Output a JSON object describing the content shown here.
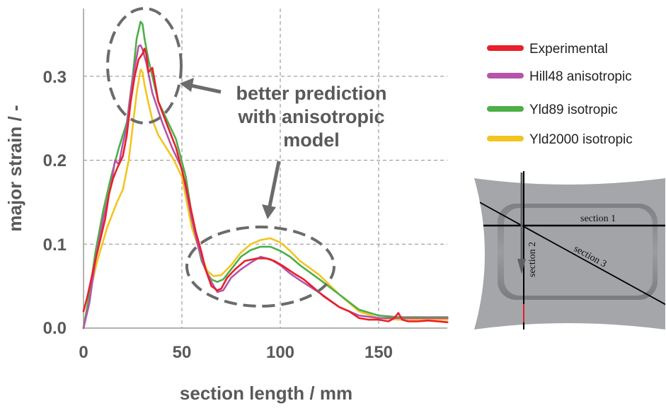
{
  "chart_data": {
    "type": "line",
    "title": "",
    "xlabel": "section length / mm",
    "ylabel": "major strain / -",
    "xlim": [
      0,
      185
    ],
    "ylim": [
      0,
      0.38
    ],
    "xticks": [
      "0",
      "50",
      "100",
      "150"
    ],
    "xtick_values": [
      0,
      50,
      100,
      150
    ],
    "yticks": [
      "0.0",
      "0.1",
      "0.2",
      "0.3"
    ],
    "ytick_values": [
      0.0,
      0.1,
      0.2,
      0.3
    ],
    "grid": true,
    "legend_position": "top-right outside",
    "series": [
      {
        "name": "Experimental",
        "color": "#e8202a",
        "x": [
          0,
          2,
          5,
          8,
          11,
          13,
          15,
          17,
          20,
          22,
          24,
          26,
          28,
          30,
          31,
          32,
          33,
          35,
          38,
          42,
          47,
          52,
          57,
          60,
          62,
          65,
          68,
          70,
          73,
          77,
          82,
          88,
          93,
          97,
          102,
          107,
          112,
          117,
          122,
          130,
          135,
          140,
          145,
          150,
          155,
          158,
          160,
          162,
          165,
          170,
          175,
          180,
          185
        ],
        "y": [
          0.02,
          0.038,
          0.07,
          0.1,
          0.13,
          0.16,
          0.178,
          0.19,
          0.205,
          0.23,
          0.27,
          0.3,
          0.32,
          0.327,
          0.333,
          0.325,
          0.305,
          0.31,
          0.27,
          0.245,
          0.215,
          0.17,
          0.115,
          0.09,
          0.07,
          0.05,
          0.045,
          0.047,
          0.06,
          0.07,
          0.08,
          0.083,
          0.083,
          0.08,
          0.073,
          0.065,
          0.058,
          0.048,
          0.038,
          0.025,
          0.02,
          0.012,
          0.01,
          0.01,
          0.008,
          0.012,
          0.018,
          0.01,
          0.008,
          0.008,
          0.009,
          0.008,
          0.007
        ]
      },
      {
        "name": "Hill48 anisotropic",
        "color": "#b455aa",
        "x": [
          0,
          3,
          6,
          10,
          14,
          16,
          18,
          20,
          22,
          24,
          26,
          28,
          29,
          30,
          32,
          35,
          40,
          45,
          50,
          55,
          58,
          61,
          65,
          68,
          71,
          75,
          80,
          85,
          90,
          95,
          100,
          105,
          110,
          120,
          130,
          140,
          150,
          160,
          170,
          185
        ],
        "y": [
          0.0,
          0.03,
          0.08,
          0.13,
          0.17,
          0.2,
          0.195,
          0.22,
          0.24,
          0.28,
          0.31,
          0.336,
          0.337,
          0.332,
          0.315,
          0.28,
          0.245,
          0.215,
          0.19,
          0.13,
          0.1,
          0.075,
          0.055,
          0.043,
          0.045,
          0.06,
          0.07,
          0.078,
          0.085,
          0.082,
          0.075,
          0.065,
          0.057,
          0.042,
          0.025,
          0.015,
          0.012,
          0.012,
          0.012,
          0.012
        ]
      },
      {
        "name": "Yld89 isotropic",
        "color": "#4caf47",
        "x": [
          0,
          3,
          6,
          10,
          14,
          18,
          22,
          25,
          27,
          29,
          30,
          31,
          33,
          35,
          38,
          42,
          47,
          52,
          56,
          60,
          63,
          65,
          68,
          71,
          75,
          80,
          85,
          90,
          95,
          100,
          105,
          110,
          120,
          130,
          140,
          150,
          160,
          170,
          185
        ],
        "y": [
          0.0,
          0.04,
          0.09,
          0.14,
          0.18,
          0.215,
          0.245,
          0.3,
          0.345,
          0.365,
          0.362,
          0.345,
          0.32,
          0.3,
          0.27,
          0.25,
          0.225,
          0.18,
          0.12,
          0.08,
          0.065,
          0.058,
          0.055,
          0.058,
          0.07,
          0.085,
          0.093,
          0.097,
          0.097,
          0.092,
          0.085,
          0.075,
          0.058,
          0.04,
          0.022,
          0.015,
          0.013,
          0.013,
          0.013
        ]
      },
      {
        "name": "Yld2000 isotropic",
        "color": "#f2c51f",
        "x": [
          0,
          3,
          7,
          12,
          17,
          20,
          23,
          25,
          27,
          29,
          30,
          31,
          33,
          35,
          38,
          42,
          46,
          50,
          55,
          60,
          63,
          66,
          70,
          75,
          80,
          85,
          90,
          95,
          100,
          105,
          110,
          120,
          130,
          140,
          150,
          160,
          170,
          185
        ],
        "y": [
          0.0,
          0.04,
          0.08,
          0.12,
          0.15,
          0.165,
          0.2,
          0.24,
          0.28,
          0.308,
          0.305,
          0.29,
          0.268,
          0.248,
          0.23,
          0.215,
          0.2,
          0.18,
          0.12,
          0.085,
          0.068,
          0.062,
          0.063,
          0.075,
          0.09,
          0.1,
          0.105,
          0.107,
          0.102,
          0.092,
          0.08,
          0.063,
          0.04,
          0.02,
          0.012,
          0.01,
          0.01,
          0.01
        ]
      }
    ],
    "annotations": [
      "better prediction",
      "with anisotropic",
      "model"
    ]
  },
  "legend": {
    "items": [
      {
        "label": "Experimental",
        "color": "#e8202a"
      },
      {
        "label": "Hill48 anisotropic",
        "color": "#b455aa"
      },
      {
        "label": "Yld89 isotropic",
        "color": "#4caf47"
      },
      {
        "label": "Yld2000 isotropic",
        "color": "#f2c51f"
      }
    ]
  },
  "specimen": {
    "section_1": "section 1",
    "section_2": "section 2",
    "section_3": "section 3"
  }
}
